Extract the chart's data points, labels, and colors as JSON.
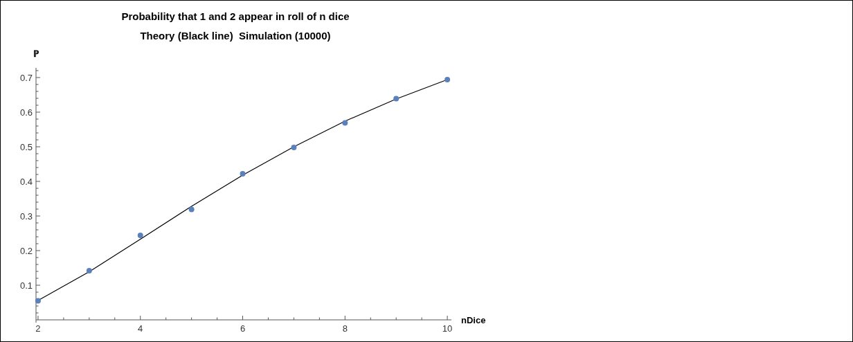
{
  "chart_data": {
    "type": "scatter",
    "title": "Probability that 1 and 2 appear in roll of n dice",
    "subtitle": "Theory (Black line)  Simulation (10000)",
    "xlabel": "nDice",
    "ylabel": "ℙ",
    "xlim": [
      1.96,
      10.08
    ],
    "ylim": [
      0,
      0.728
    ],
    "xticks": [
      2,
      {
        "value": 2.5,
        "label": null
      },
      {
        "value": 3,
        "label": null
      },
      {
        "value": 3.5,
        "label": null
      },
      4,
      {
        "value": 4.5,
        "label": null
      },
      {
        "value": 5,
        "label": null
      },
      {
        "value": 5.5,
        "label": null
      },
      6,
      {
        "value": 6.5,
        "label": null
      },
      {
        "value": 7,
        "label": null
      },
      {
        "value": 7.5,
        "label": null
      },
      8,
      {
        "value": 8.5,
        "label": null
      },
      {
        "value": 9,
        "label": null
      },
      {
        "value": 9.5,
        "label": null
      },
      10
    ],
    "yticks": [
      {
        "value": 0.02,
        "label": null
      },
      {
        "value": 0.04,
        "label": null
      },
      {
        "value": 0.06,
        "label": null
      },
      {
        "value": 0.08,
        "label": null
      },
      0.1,
      {
        "value": 0.12,
        "label": null
      },
      {
        "value": 0.14,
        "label": null
      },
      {
        "value": 0.16,
        "label": null
      },
      {
        "value": 0.18,
        "label": null
      },
      0.2,
      {
        "value": 0.22,
        "label": null
      },
      {
        "value": 0.24,
        "label": null
      },
      {
        "value": 0.26,
        "label": null
      },
      {
        "value": 0.28,
        "label": null
      },
      0.3,
      {
        "value": 0.32,
        "label": null
      },
      {
        "value": 0.34,
        "label": null
      },
      {
        "value": 0.36,
        "label": null
      },
      {
        "value": 0.38,
        "label": null
      },
      0.4,
      {
        "value": 0.42,
        "label": null
      },
      {
        "value": 0.44,
        "label": null
      },
      {
        "value": 0.46,
        "label": null
      },
      {
        "value": 0.48,
        "label": null
      },
      0.5,
      {
        "value": 0.52,
        "label": null
      },
      {
        "value": 0.54,
        "label": null
      },
      {
        "value": 0.56,
        "label": null
      },
      {
        "value": 0.58,
        "label": null
      },
      0.6,
      {
        "value": 0.62,
        "label": null
      },
      {
        "value": 0.64,
        "label": null
      },
      {
        "value": 0.66,
        "label": null
      },
      {
        "value": 0.68,
        "label": null
      },
      0.7,
      {
        "value": 0.72,
        "label": null
      }
    ],
    "grid": false,
    "marker": "circle",
    "series": [
      {
        "type": "line",
        "color": "#000000",
        "marker": "none",
        "x": [
          2,
          3,
          4,
          5,
          6,
          7,
          8,
          9,
          10
        ],
        "values": [
          0.056,
          0.139,
          0.233,
          0.328,
          0.418,
          0.5,
          0.574,
          0.638,
          0.694
        ]
      },
      {
        "color": "#5b81bd",
        "x": [
          2,
          3,
          4,
          5,
          6,
          7,
          8,
          9,
          10
        ],
        "values": [
          0.055,
          0.142,
          0.244,
          0.319,
          0.422,
          0.498,
          0.569,
          0.639,
          0.694
        ]
      }
    ]
  }
}
